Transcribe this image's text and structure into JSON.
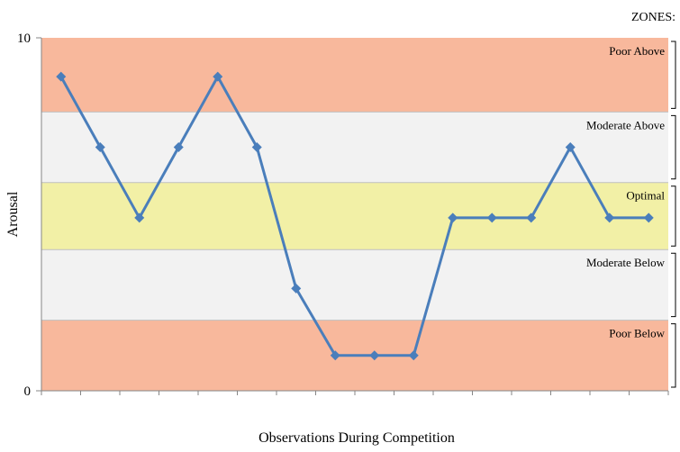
{
  "chart_data": {
    "type": "line",
    "title": "",
    "xlabel": "Observations During Competition",
    "ylabel": "Arousal",
    "ylim": [
      0,
      10
    ],
    "y_tick_labels": [
      "0",
      "10"
    ],
    "zones_heading": "ZONES:",
    "zones": [
      {
        "label": "Poor Above",
        "from": 7.9,
        "to": 10,
        "color": "#f8b89c"
      },
      {
        "label": "Moderate Above",
        "from": 5.9,
        "to": 7.9,
        "color": "#f2f2f2"
      },
      {
        "label": "Optimal",
        "from": 4.0,
        "to": 5.9,
        "color": "#f2f0a6"
      },
      {
        "label": "Moderate Below",
        "from": 2.0,
        "to": 4.0,
        "color": "#f2f2f2"
      },
      {
        "label": "Poor Below",
        "from": 0,
        "to": 2.0,
        "color": "#f8b89c"
      }
    ],
    "series": [
      {
        "values": [
          8.9,
          6.9,
          4.9,
          6.9,
          8.9,
          6.9,
          2.9,
          1.0,
          1.0,
          1.0,
          4.9,
          4.9,
          4.9,
          6.9,
          4.9,
          4.9
        ]
      }
    ],
    "series_color": "#4a7ebb",
    "grid": true
  }
}
